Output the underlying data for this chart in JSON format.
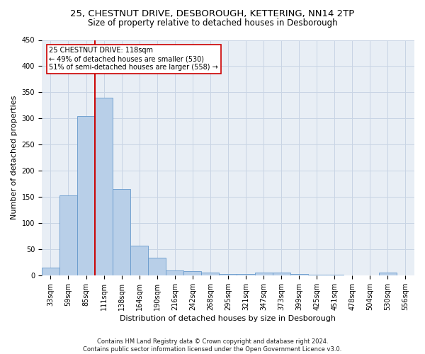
{
  "title1": "25, CHESTNUT DRIVE, DESBOROUGH, KETTERING, NN14 2TP",
  "title2": "Size of property relative to detached houses in Desborough",
  "xlabel": "Distribution of detached houses by size in Desborough",
  "ylabel": "Number of detached properties",
  "footer1": "Contains HM Land Registry data © Crown copyright and database right 2024.",
  "footer2": "Contains public sector information licensed under the Open Government Licence v3.0.",
  "categories": [
    "33sqm",
    "59sqm",
    "85sqm",
    "111sqm",
    "138sqm",
    "164sqm",
    "190sqm",
    "216sqm",
    "242sqm",
    "268sqm",
    "295sqm",
    "321sqm",
    "347sqm",
    "373sqm",
    "399sqm",
    "425sqm",
    "451sqm",
    "478sqm",
    "504sqm",
    "530sqm",
    "556sqm"
  ],
  "values": [
    15,
    153,
    305,
    340,
    165,
    57,
    34,
    9,
    8,
    5,
    2,
    2,
    5,
    5,
    2,
    1,
    1,
    0,
    0,
    5,
    0
  ],
  "bar_color": "#b8cfe8",
  "bar_edge_color": "#6699cc",
  "vline_x_idx": 3,
  "vline_color": "#cc0000",
  "annotation_text": "25 CHESTNUT DRIVE: 118sqm\n← 49% of detached houses are smaller (530)\n51% of semi-detached houses are larger (558) →",
  "annotation_box_color": "#ffffff",
  "annotation_box_edge": "#cc0000",
  "ylim": [
    0,
    450
  ],
  "yticks": [
    0,
    50,
    100,
    150,
    200,
    250,
    300,
    350,
    400,
    450
  ],
  "bg_color": "#ffffff",
  "plot_bg_color": "#e8eef5",
  "grid_color": "#c8d4e4",
  "title_fontsize": 9.5,
  "subtitle_fontsize": 8.5,
  "ylabel_fontsize": 8,
  "xlabel_fontsize": 8,
  "tick_fontsize": 7,
  "annotation_fontsize": 7,
  "footer_fontsize": 6
}
